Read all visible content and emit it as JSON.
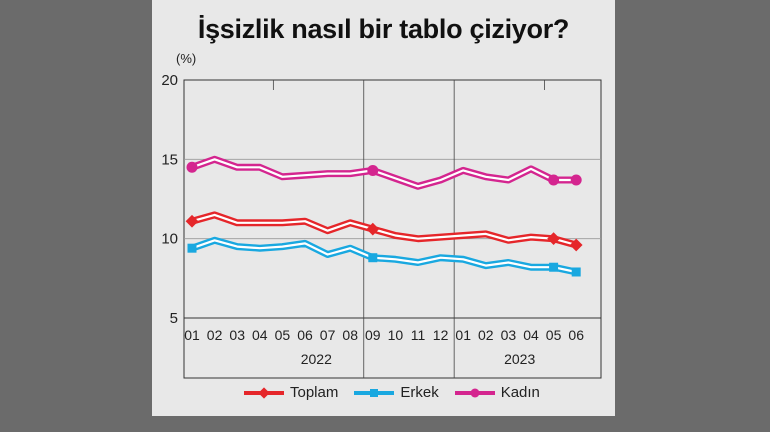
{
  "title": "İşsizlik nasıl bir tablo çiziyor?",
  "unit": "(%)",
  "chart_data": {
    "type": "line",
    "ylim": [
      5,
      20
    ],
    "yticks": [
      "5",
      "10",
      "15",
      "20"
    ],
    "years": [
      {
        "label": "2022",
        "months": [
          "01",
          "02",
          "03",
          "04",
          "05",
          "06",
          "07",
          "08",
          "09",
          "10",
          "11",
          "12"
        ]
      },
      {
        "label": "2023",
        "months": [
          "01",
          "02",
          "03",
          "04",
          "05",
          "06"
        ]
      }
    ],
    "x": [
      "2022-01",
      "2022-02",
      "2022-03",
      "2022-04",
      "2022-05",
      "2022-06",
      "2022-07",
      "2022-08",
      "2022-09",
      "2022-10",
      "2022-11",
      "2022-12",
      "2023-01",
      "2023-02",
      "2023-03",
      "2023-04",
      "2023-05",
      "2023-06"
    ],
    "series": [
      {
        "name": "Toplam",
        "color": "#e5262a",
        "values": [
          11.1,
          11.5,
          11.0,
          11.0,
          11.0,
          11.1,
          10.5,
          11.0,
          10.6,
          10.2,
          10.0,
          10.1,
          10.2,
          10.3,
          9.9,
          10.1,
          10.0,
          9.6
        ]
      },
      {
        "name": "Erkek",
        "color": "#19a8e0",
        "values": [
          9.4,
          9.9,
          9.5,
          9.4,
          9.5,
          9.7,
          9.0,
          9.4,
          8.8,
          8.7,
          8.5,
          8.8,
          8.7,
          8.3,
          8.5,
          8.2,
          8.2,
          7.9
        ]
      },
      {
        "name": "Kadın",
        "color": "#d4258f",
        "values": [
          14.5,
          15.0,
          14.5,
          14.5,
          13.9,
          14.0,
          14.1,
          14.1,
          14.3,
          13.8,
          13.3,
          13.7,
          14.3,
          13.9,
          13.7,
          14.4,
          13.7,
          13.7
        ]
      }
    ]
  }
}
